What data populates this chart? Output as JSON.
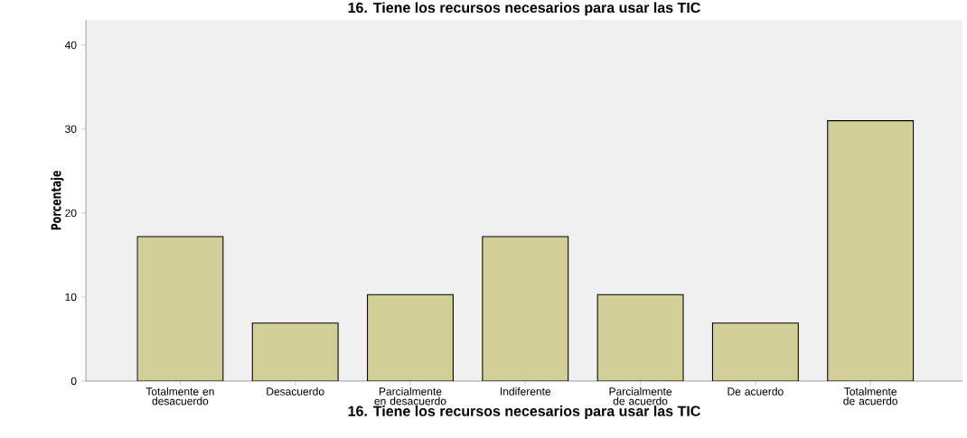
{
  "chart_data": {
    "type": "bar",
    "title": "16. Tiene los recursos necesarios para usar las TIC",
    "xlabel": "16. Tiene los recursos necesarios para usar las TIC",
    "ylabel": "Porcentaje",
    "categories": [
      "Totalmente en desacuerdo",
      "Desacuerdo",
      "Parcialmente en desacuerdo",
      "Indiferente",
      "Parcialmente de acuerdo",
      "De acuerdo",
      "Totalmente de acuerdo"
    ],
    "values": [
      17.2,
      6.9,
      10.3,
      17.2,
      10.3,
      6.9,
      31.0
    ],
    "color": "#d3ce97",
    "ylim": [
      0,
      43
    ],
    "yticks": [
      0,
      10,
      20,
      30,
      40
    ]
  }
}
